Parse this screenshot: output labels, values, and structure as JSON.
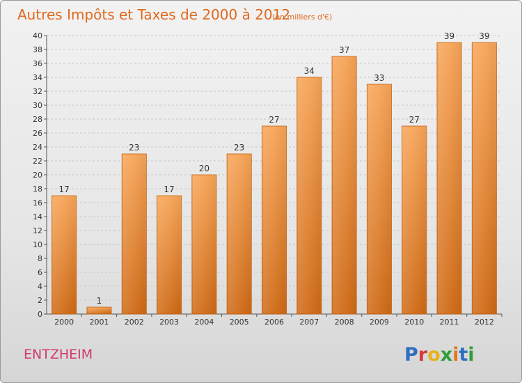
{
  "chart_data": {
    "type": "bar",
    "title": "Autres Impôts et Taxes de 2000 à 2012",
    "subtitle": "(en milliers d'€)",
    "categories": [
      "2000",
      "2001",
      "2002",
      "2003",
      "2004",
      "2005",
      "2006",
      "2007",
      "2008",
      "2009",
      "2010",
      "2011",
      "2012"
    ],
    "values": [
      17,
      1,
      23,
      17,
      20,
      23,
      27,
      34,
      37,
      33,
      27,
      39,
      39
    ],
    "ylim": [
      0,
      40
    ],
    "yticks": [
      0,
      2,
      4,
      6,
      8,
      10,
      12,
      14,
      16,
      18,
      20,
      22,
      24,
      26,
      28,
      30,
      32,
      34,
      36,
      38,
      40
    ],
    "grid": true,
    "bar_color": "#f0903a",
    "bar_color_dark": "#d06c18"
  },
  "footer": {
    "city": "ENTZHEIM",
    "logo_letters": [
      {
        "ch": "P",
        "color": "#2f6fc2"
      },
      {
        "ch": "r",
        "color": "#d33a3a"
      },
      {
        "ch": "o",
        "color": "#e8b21c"
      },
      {
        "ch": "x",
        "color": "#2f9e3a"
      },
      {
        "ch": "i",
        "color": "#e07a1e"
      },
      {
        "ch": "t",
        "color": "#2f6fc2"
      },
      {
        "ch": "i",
        "color": "#2f9e3a"
      }
    ]
  }
}
